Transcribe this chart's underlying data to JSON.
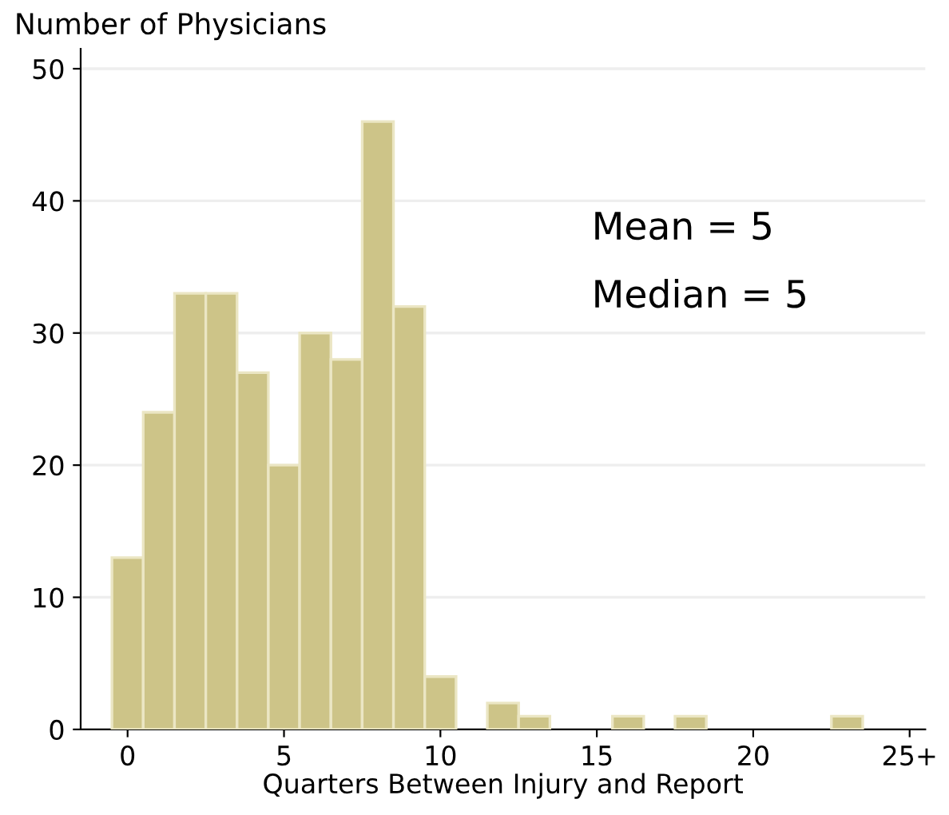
{
  "chart_data": {
    "type": "histogram",
    "ylabel": "Number of Physicians",
    "xlabel": "Quarters Between Injury and Report",
    "bins": [
      -0.5,
      0.5,
      1.5,
      2.5,
      3.5,
      4.5,
      5.5,
      6.5,
      7.5,
      8.5,
      9.5,
      10.5,
      11.5,
      12.5,
      13.5,
      14.5,
      15.5,
      16.5,
      17.5,
      18.5,
      19.5,
      20.5,
      21.5,
      22.5,
      23.5
    ],
    "values": [
      13,
      24,
      33,
      33,
      27,
      20,
      30,
      28,
      46,
      32,
      4,
      0,
      2,
      1,
      0,
      0,
      1,
      0,
      1,
      0,
      0,
      0,
      0,
      1
    ],
    "color": "#cdc488",
    "xlim": [
      -1.5,
      25.5
    ],
    "xticks": [
      0,
      5,
      10,
      15,
      20,
      {
        "value": 25,
        "label": "25+"
      }
    ],
    "ylim": [
      0,
      51.5
    ],
    "yticks": [
      0,
      10,
      20,
      30,
      40,
      50
    ],
    "grid": "y",
    "legend": false,
    "annotations": [
      "Mean = 5",
      "Median = 5"
    ]
  }
}
